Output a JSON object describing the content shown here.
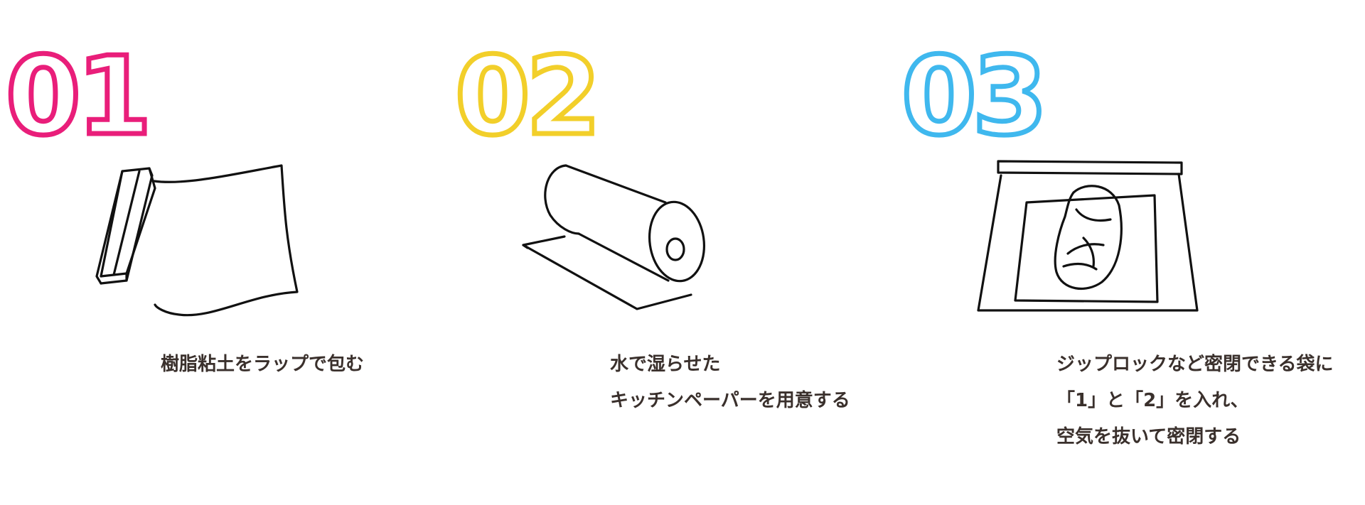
{
  "colors": {
    "step1": "#e91e7a",
    "step2": "#f2cf2a",
    "step3": "#3fb8ee",
    "caption_text": "#3a302c"
  },
  "steps": [
    {
      "number": "01",
      "illustration": "plastic-wrap-roll-icon",
      "caption_lines": [
        "樹脂粘土をラップで包む"
      ]
    },
    {
      "number": "02",
      "illustration": "paper-towel-roll-icon",
      "caption_lines": [
        "水で湿らせた",
        "キッチンペーパーを用意する"
      ]
    },
    {
      "number": "03",
      "illustration": "ziplock-bag-icon",
      "caption_lines": [
        "ジップロックなど密閉できる袋に",
        "「1」と「2」を入れ、",
        "空気を抜いて密閉する"
      ]
    }
  ]
}
